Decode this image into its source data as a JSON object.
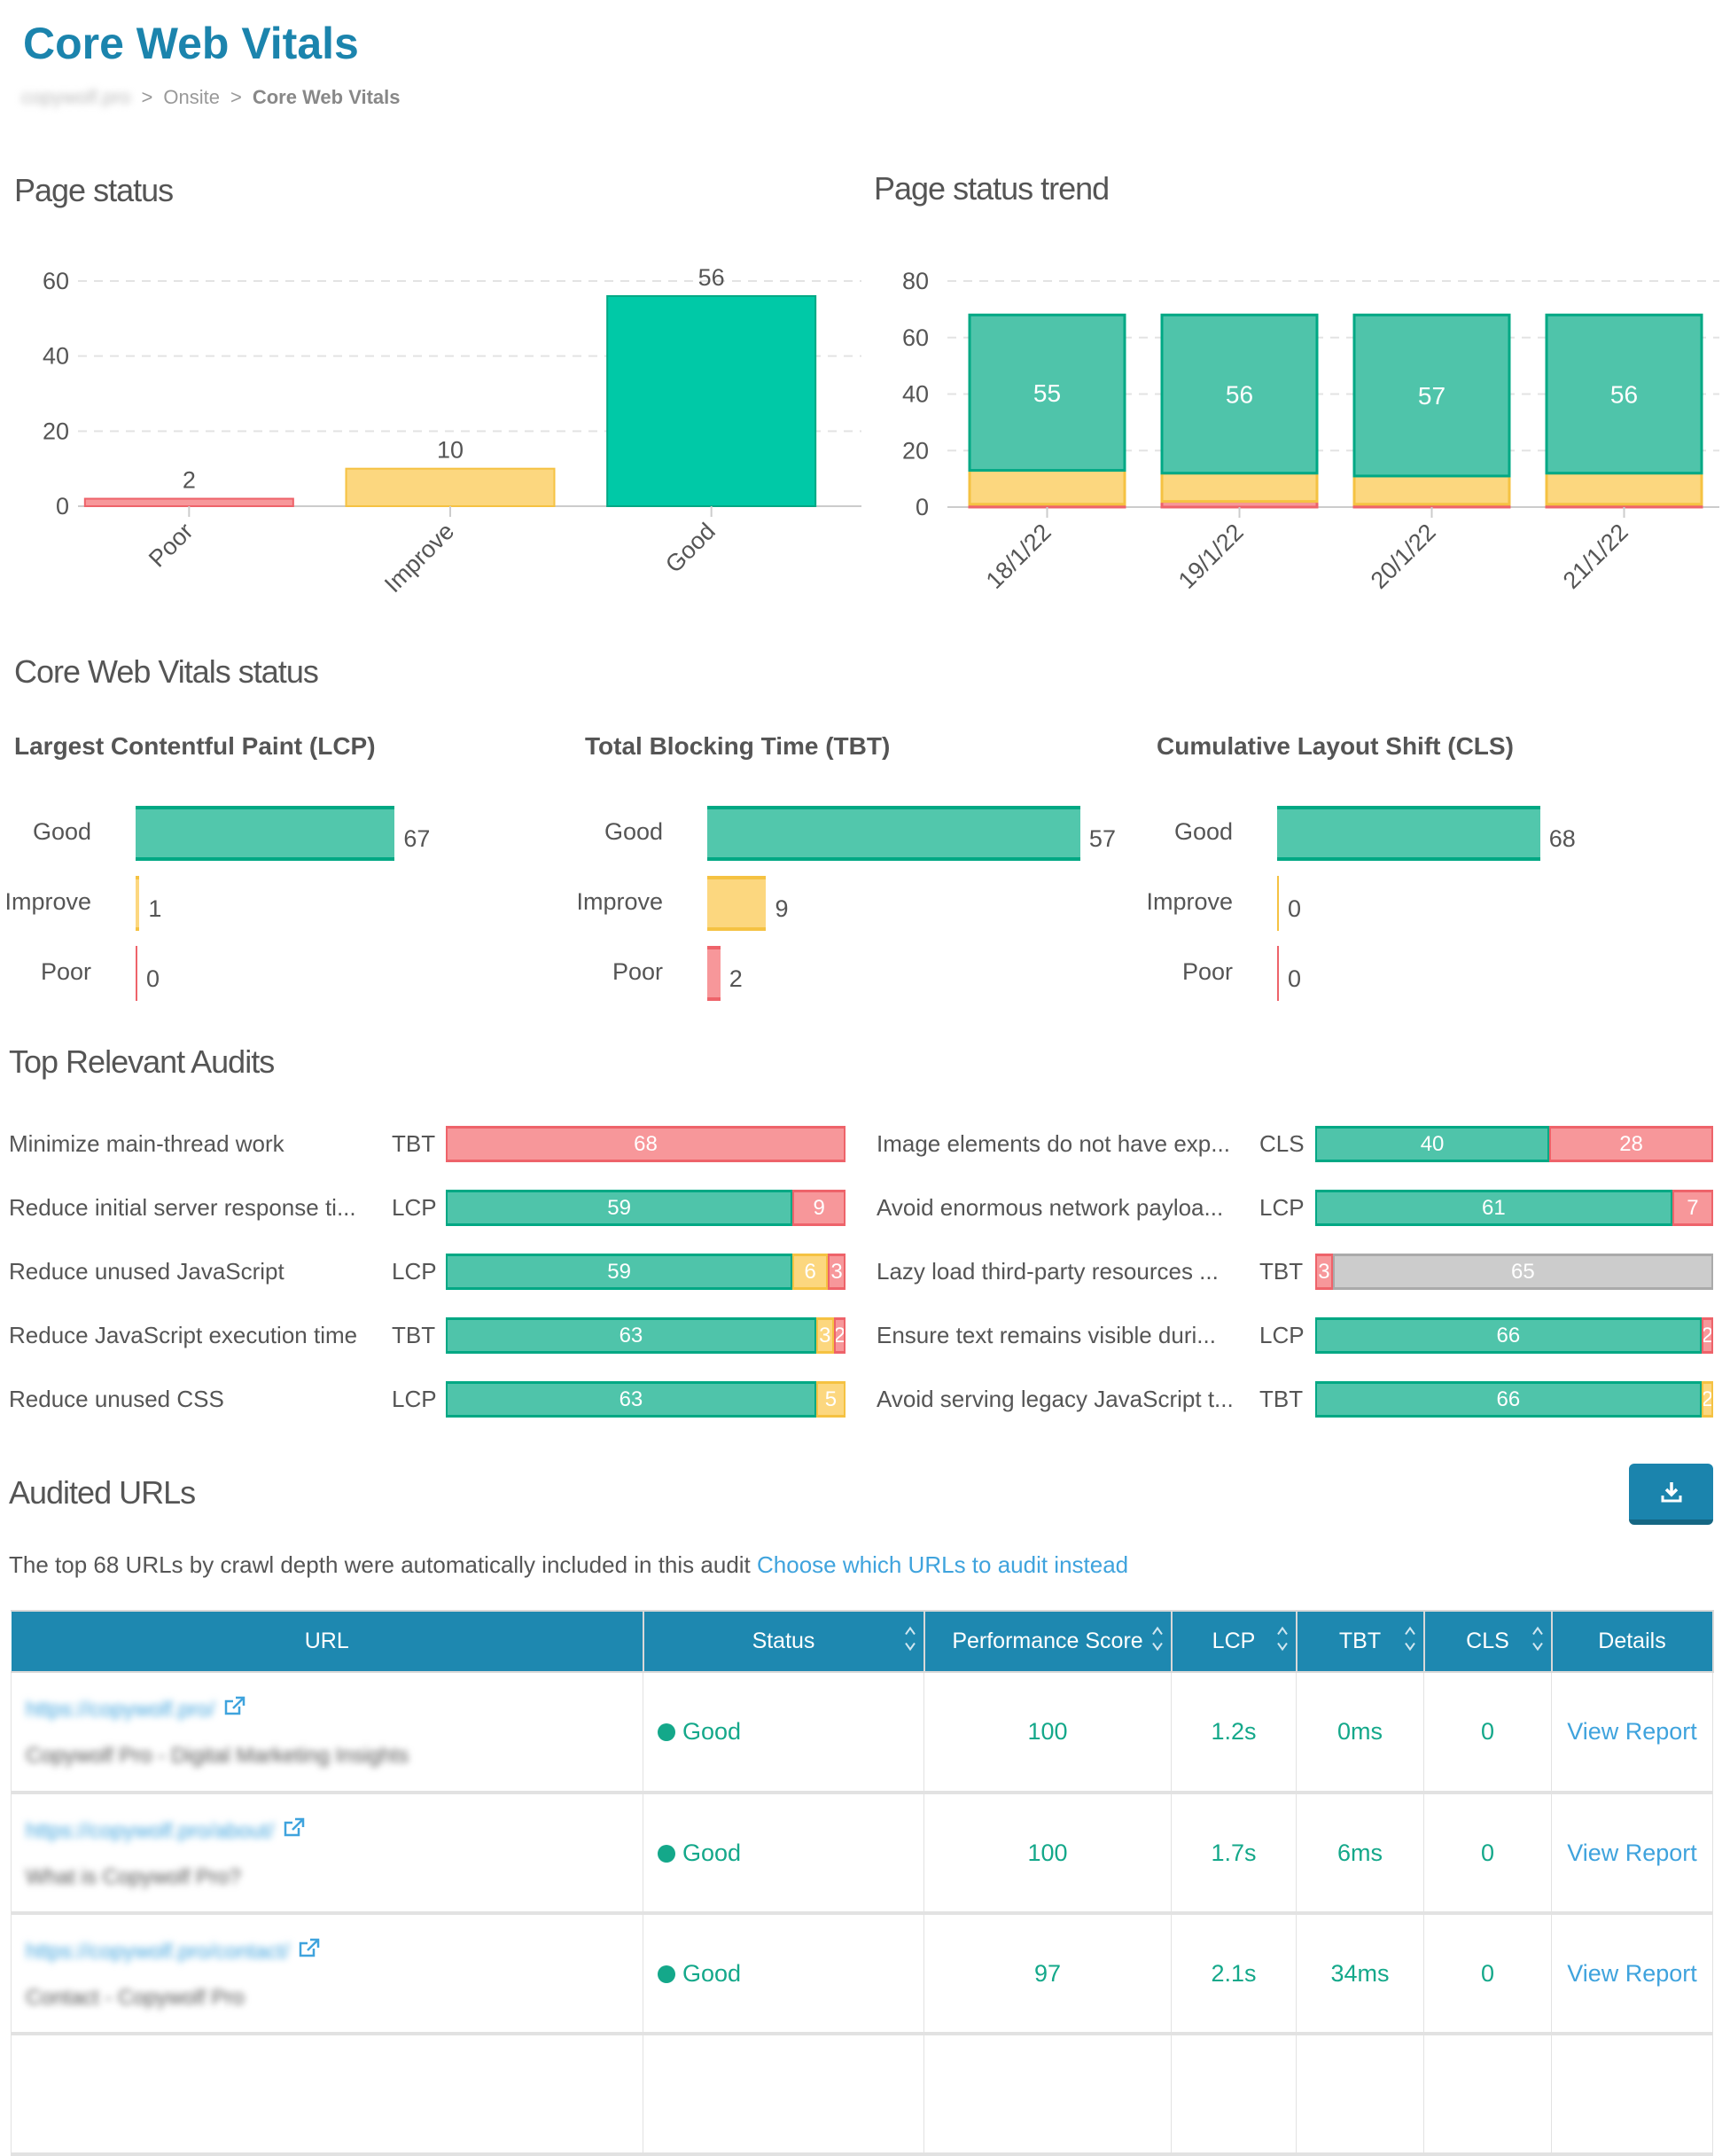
{
  "header": {
    "title": "Core Web Vitals"
  },
  "breadcrumb": [
    "copywolf.pro",
    "Onsite",
    "Core Web Vitals"
  ],
  "colors": {
    "good": "#00c9a7",
    "good_soft": "#4fc4aa",
    "good_border": "#00a884",
    "improve": "#fcd77f",
    "improve_border": "#f5c242",
    "poor": "#f7979a",
    "poor_border": "#ee636a",
    "other": "#cccccc",
    "other_border": "#aaaaaa",
    "accent": "#1b84ad"
  },
  "chart_data": [
    {
      "type": "bar",
      "title": "Page status",
      "categories": [
        "Poor",
        "Improve",
        "Good"
      ],
      "values": [
        2,
        10,
        56
      ],
      "yticks": [
        0,
        20,
        40,
        60
      ],
      "ylim": [
        0,
        60
      ],
      "grid": true
    },
    {
      "type": "bar",
      "stacked": true,
      "title": "Page status trend",
      "categories": [
        "18/1/22",
        "19/1/22",
        "20/1/22",
        "21/1/22"
      ],
      "series": [
        {
          "key": "poor",
          "values": [
            1,
            2,
            1,
            1
          ]
        },
        {
          "key": "improve",
          "values": [
            12,
            10,
            10,
            11
          ]
        },
        {
          "key": "good",
          "values": [
            55,
            56,
            57,
            56
          ]
        }
      ],
      "yticks": [
        0,
        20,
        40,
        60,
        80
      ],
      "ylim": [
        0,
        80
      ],
      "grid": true
    }
  ],
  "cwv": {
    "heading": "Core Web Vitals status",
    "metrics": [
      {
        "title": "Largest Contentful Paint (LCP)",
        "xmax": 110,
        "rows": [
          {
            "label": "Good",
            "value": 67,
            "key": "good"
          },
          {
            "label": "Improve",
            "value": 1,
            "key": "improve"
          },
          {
            "label": "Poor",
            "value": 0,
            "key": "poor"
          }
        ]
      },
      {
        "title": "Total Blocking Time (TBT)",
        "xmax": 65,
        "rows": [
          {
            "label": "Good",
            "value": 57,
            "key": "good"
          },
          {
            "label": "Improve",
            "value": 9,
            "key": "improve"
          },
          {
            "label": "Poor",
            "value": 2,
            "key": "poor"
          }
        ]
      },
      {
        "title": "Cumulative Layout Shift (CLS)",
        "xmax": 110,
        "rows": [
          {
            "label": "Good",
            "value": 68,
            "key": "good"
          },
          {
            "label": "Improve",
            "value": 0,
            "key": "improve"
          },
          {
            "label": "Poor",
            "value": 0,
            "key": "poor"
          }
        ]
      }
    ]
  },
  "audits": {
    "heading": "Top Relevant Audits",
    "total": 68,
    "left": [
      {
        "label": "Minimize main-thread work",
        "metric": "TBT",
        "segments": [
          {
            "key": "poor",
            "value": 68
          }
        ]
      },
      {
        "label": "Reduce initial server response ti...",
        "metric": "LCP",
        "segments": [
          {
            "key": "good",
            "value": 59
          },
          {
            "key": "poor",
            "value": 9
          }
        ]
      },
      {
        "label": "Reduce unused JavaScript",
        "metric": "LCP",
        "segments": [
          {
            "key": "good",
            "value": 59
          },
          {
            "key": "improve",
            "value": 6
          },
          {
            "key": "poor",
            "value": 3
          }
        ]
      },
      {
        "label": "Reduce JavaScript execution time",
        "metric": "TBT",
        "segments": [
          {
            "key": "good",
            "value": 63
          },
          {
            "key": "improve",
            "value": 3
          },
          {
            "key": "poor",
            "value": 2
          }
        ]
      },
      {
        "label": "Reduce unused CSS",
        "metric": "LCP",
        "segments": [
          {
            "key": "good",
            "value": 63
          },
          {
            "key": "improve",
            "value": 5
          }
        ]
      }
    ],
    "right": [
      {
        "label": "Image elements do not have exp...",
        "metric": "CLS",
        "segments": [
          {
            "key": "good",
            "value": 40
          },
          {
            "key": "poor",
            "value": 28
          }
        ]
      },
      {
        "label": "Avoid enormous network payloa...",
        "metric": "LCP",
        "segments": [
          {
            "key": "good",
            "value": 61
          },
          {
            "key": "poor",
            "value": 7
          }
        ]
      },
      {
        "label": "Lazy load third-party resources ...",
        "metric": "TBT",
        "segments": [
          {
            "key": "poor",
            "value": 3
          },
          {
            "key": "other",
            "value": 65
          }
        ]
      },
      {
        "label": "Ensure text remains visible duri...",
        "metric": "LCP",
        "segments": [
          {
            "key": "good",
            "value": 66
          },
          {
            "key": "poor",
            "value": 2
          }
        ]
      },
      {
        "label": "Avoid serving legacy JavaScript t...",
        "metric": "TBT",
        "segments": [
          {
            "key": "good",
            "value": 66
          },
          {
            "key": "improve",
            "value": 2
          }
        ]
      }
    ]
  },
  "audited": {
    "heading": "Audited URLs",
    "download_icon": "download-icon",
    "description": "The top 68 URLs by crawl depth were automatically included in this audit",
    "link": "Choose which URLs to audit instead",
    "columns": [
      "URL",
      "Status",
      "Performance Score",
      "LCP",
      "TBT",
      "CLS",
      "Details"
    ],
    "rows": [
      {
        "url": "https://copywolf.pro/",
        "page_title": "Copywolf Pro - Digital Marketing Insights",
        "status": "Good",
        "score": "100",
        "lcp": "1.2s",
        "tbt": "0ms",
        "cls": "0",
        "details": "View Report"
      },
      {
        "url": "https://copywolf.pro/about/",
        "page_title": "What is Copywolf Pro?",
        "status": "Good",
        "score": "100",
        "lcp": "1.7s",
        "tbt": "6ms",
        "cls": "0",
        "details": "View Report"
      },
      {
        "url": "https://copywolf.pro/contact/",
        "page_title": "Contact - Copywolf Pro",
        "status": "Good",
        "score": "97",
        "lcp": "2.1s",
        "tbt": "34ms",
        "cls": "0",
        "details": "View Report"
      }
    ]
  }
}
